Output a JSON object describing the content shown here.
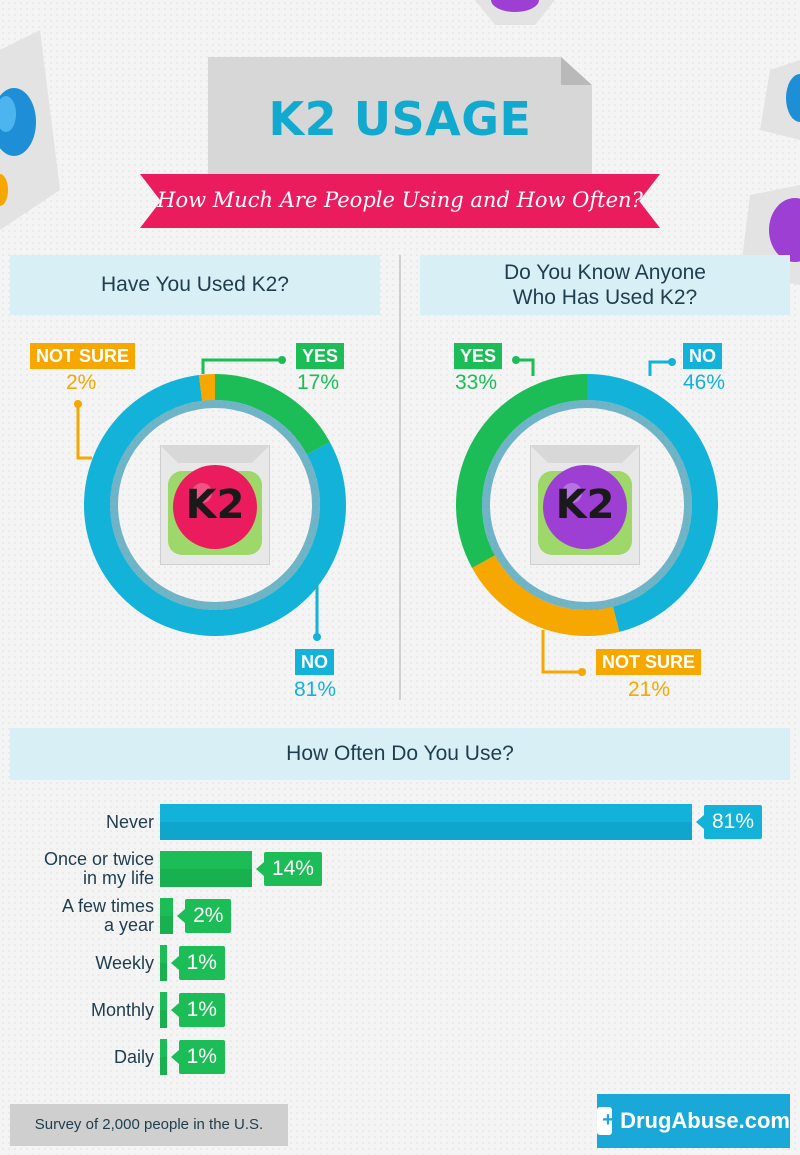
{
  "header": {
    "title": "K2 USAGE",
    "subtitle": "How Much Are People Using and How Often?"
  },
  "sections": {
    "used_title": "Have You Used K2?",
    "know_title_line1": "Do You Know Anyone",
    "know_title_line2": "Who Has Used K2?",
    "freq_title": "How Often Do You Use?"
  },
  "badge_text": "K2",
  "colors": {
    "blue": "#12b2d9",
    "green": "#1cbd57",
    "orange": "#f6a700",
    "pink": "#ea1c5d",
    "purple": "#9c3fd2"
  },
  "chart_data": [
    {
      "type": "pie",
      "title": "Have You Used K2?",
      "slices": [
        {
          "label": "YES",
          "value": 17,
          "display": "17%",
          "color": "#1cbd57"
        },
        {
          "label": "NO",
          "value": 81,
          "display": "81%",
          "color": "#12b2d9"
        },
        {
          "label": "NOT SURE",
          "value": 2,
          "display": "2%",
          "color": "#f6a700"
        }
      ]
    },
    {
      "type": "pie",
      "title": "Do You Know Anyone Who Has Used K2?",
      "slices": [
        {
          "label": "NO",
          "value": 46,
          "display": "46%",
          "color": "#12b2d9"
        },
        {
          "label": "NOT SURE",
          "value": 21,
          "display": "21%",
          "color": "#f6a700"
        },
        {
          "label": "YES",
          "value": 33,
          "display": "33%",
          "color": "#1cbd57"
        }
      ]
    },
    {
      "type": "bar",
      "orientation": "horizontal",
      "title": "How Often Do You Use?",
      "xlim": [
        0,
        81
      ],
      "bars": [
        {
          "label_line1": "Never",
          "label_line2": "",
          "value": 81,
          "display": "81%",
          "color": "#12b2d9"
        },
        {
          "label_line1": "Once or twice",
          "label_line2": "in my life",
          "value": 14,
          "display": "14%",
          "color": "#1cbd57"
        },
        {
          "label_line1": "A few times",
          "label_line2": "a year",
          "value": 2,
          "display": "2%",
          "color": "#1cbd57"
        },
        {
          "label_line1": "Weekly",
          "label_line2": "",
          "value": 1,
          "display": "1%",
          "color": "#1cbd57"
        },
        {
          "label_line1": "Monthly",
          "label_line2": "",
          "value": 1,
          "display": "1%",
          "color": "#1cbd57"
        },
        {
          "label_line1": "Daily",
          "label_line2": "",
          "value": 1,
          "display": "1%",
          "color": "#1cbd57"
        }
      ]
    }
  ],
  "footer": {
    "note": "Survey of 2,000 people in the U.S.",
    "brand": "DrugAbuse.com",
    "brand_icon": "medical-clipboard-icon"
  }
}
